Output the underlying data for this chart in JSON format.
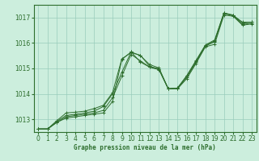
{
  "title": "Graphe pression niveau de la mer (hPa)",
  "bg_color": "#cceedd",
  "grid_color": "#99ccbb",
  "line_color": "#2d6e2d",
  "xlim": [
    -0.5,
    23.5
  ],
  "ylim": [
    1012.5,
    1017.5
  ],
  "yticks": [
    1013,
    1014,
    1015,
    1016,
    1017
  ],
  "xticks": [
    0,
    1,
    2,
    3,
    4,
    5,
    6,
    7,
    8,
    9,
    10,
    11,
    12,
    13,
    14,
    15,
    16,
    17,
    18,
    19,
    20,
    21,
    22,
    23
  ],
  "series": [
    [
      1012.62,
      1012.62,
      1012.88,
      1013.05,
      1013.1,
      1013.15,
      1013.2,
      1013.25,
      1013.7,
      1015.35,
      1015.65,
      1015.25,
      1015.05,
      1014.95,
      1014.2,
      1014.2,
      1014.6,
      1015.2,
      1015.85,
      1015.95,
      1017.1,
      1017.05,
      1016.7,
      1016.75
    ],
    [
      1012.62,
      1012.62,
      1012.88,
      1013.1,
      1013.15,
      1013.2,
      1013.25,
      1013.35,
      1013.85,
      1014.7,
      1015.55,
      1015.3,
      1015.05,
      1014.98,
      1014.2,
      1014.22,
      1014.65,
      1015.25,
      1015.88,
      1016.05,
      1017.15,
      1017.08,
      1016.73,
      1016.78
    ],
    [
      1012.62,
      1012.62,
      1012.92,
      1013.15,
      1013.2,
      1013.25,
      1013.32,
      1013.5,
      1014.0,
      1014.85,
      1015.65,
      1015.5,
      1015.15,
      1015.02,
      1014.2,
      1014.23,
      1014.7,
      1015.28,
      1015.9,
      1016.08,
      1017.18,
      1017.1,
      1016.78,
      1016.82
    ],
    [
      1012.62,
      1012.62,
      1012.95,
      1013.25,
      1013.28,
      1013.32,
      1013.42,
      1013.55,
      1014.05,
      1015.38,
      1015.62,
      1015.52,
      1015.08,
      1014.98,
      1014.2,
      1014.23,
      1014.72,
      1015.32,
      1015.92,
      1016.12,
      1017.18,
      1017.08,
      1016.82,
      1016.82
    ]
  ]
}
